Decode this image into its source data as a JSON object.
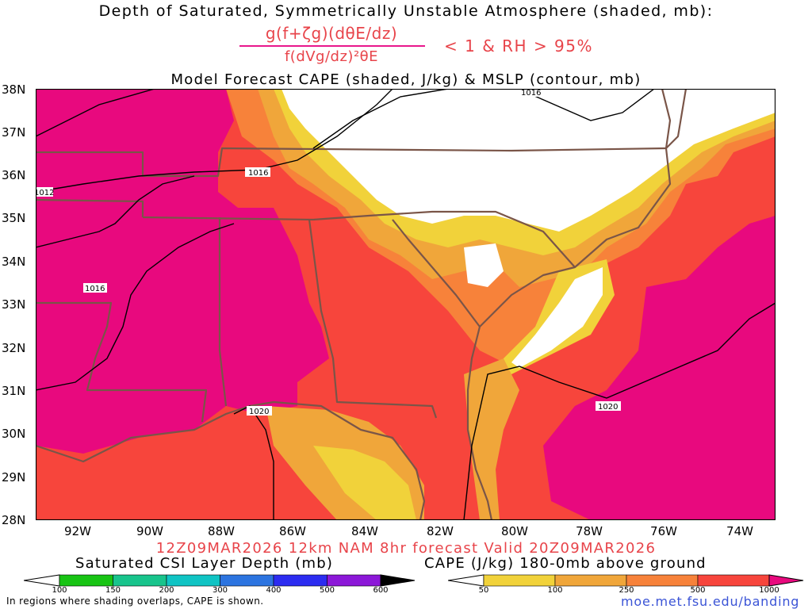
{
  "title": {
    "line1": "Depth of Saturated, Symmetrically Unstable Atmosphere (shaded, mb):",
    "numerator": "g(f+ζg)(dθE/dz)",
    "denominator": "f(dVg/dz)²θE",
    "condition": "< 1 & RH > 95%",
    "line3": "Model Forecast CAPE (shaded, J/kg) & MSLP (contour, mb)"
  },
  "map": {
    "lat_labels": [
      "38N",
      "37N",
      "36N",
      "35N",
      "34N",
      "33N",
      "32N",
      "31N",
      "30N",
      "29N",
      "28N"
    ],
    "lon_labels": [
      "92W",
      "90W",
      "88W",
      "86W",
      "84W",
      "82W",
      "80W",
      "78W",
      "76W",
      "74W"
    ],
    "isobar_labels": [
      "1016",
      "1016",
      "1012",
      "1016",
      "1020",
      "1020"
    ],
    "colors": {
      "land_border": "#7a5548",
      "isobar": "#000000",
      "cape_1000": "#e8097e",
      "cape_500": "#f7453c",
      "cape_250": "#f7823a",
      "cape_100": "#f0a63a",
      "cape_50": "#f1d23a"
    }
  },
  "forecast_info": "12Z09MAR2026 12km NAM 8hr forecast Valid 20Z09MAR2026",
  "legend_csi": {
    "title": "Saturated CSI Layer Depth (mb)",
    "ticks": [
      "100",
      "150",
      "200",
      "300",
      "400",
      "500",
      "600"
    ],
    "colors": [
      "#ffffff",
      "#18c414",
      "#18c48c",
      "#10c4c4",
      "#2c74e0",
      "#2c2cf0",
      "#8c18d8",
      "#000000"
    ]
  },
  "legend_cape": {
    "title": "CAPE (J/kg) 180-0mb above ground",
    "ticks": [
      "50",
      "100",
      "250",
      "500",
      "1000"
    ],
    "colors": [
      "#ffffff",
      "#f1d23a",
      "#f0a63a",
      "#f7823a",
      "#f7453c",
      "#e8097e"
    ]
  },
  "note": "In regions where shading overlaps, CAPE is shown.",
  "credit": "moe.met.fsu.edu/banding"
}
